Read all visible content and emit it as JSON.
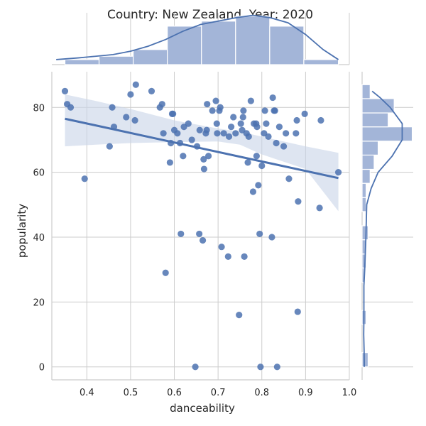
{
  "chart_data": {
    "type": "scatter",
    "title": "Country: New Zealand, Year: 2020",
    "xlabel": "danceability",
    "ylabel": "popularity",
    "xlim": [
      0.32,
      1.0
    ],
    "ylim": [
      -4,
      91
    ],
    "xticks": [
      "0.4",
      "0.5",
      "0.6",
      "0.7",
      "0.8",
      "0.9",
      "1.0"
    ],
    "yticks": [
      "0",
      "20",
      "40",
      "60",
      "80"
    ],
    "grid": true,
    "colors": {
      "points": "#4c72b0",
      "band": "#c8d3e8",
      "bars": "#a3b5d8",
      "bar_edge": "#ffffff"
    },
    "points": [
      [
        0.35,
        85
      ],
      [
        0.355,
        81
      ],
      [
        0.363,
        80
      ],
      [
        0.395,
        58
      ],
      [
        0.452,
        68
      ],
      [
        0.458,
        80
      ],
      [
        0.462,
        74
      ],
      [
        0.49,
        77
      ],
      [
        0.5,
        84
      ],
      [
        0.51,
        76
      ],
      [
        0.512,
        87
      ],
      [
        0.548,
        85
      ],
      [
        0.567,
        80
      ],
      [
        0.572,
        81
      ],
      [
        0.575,
        72
      ],
      [
        0.58,
        29
      ],
      [
        0.59,
        63
      ],
      [
        0.592,
        69
      ],
      [
        0.595,
        78
      ],
      [
        0.597,
        78
      ],
      [
        0.6,
        73
      ],
      [
        0.607,
        72
      ],
      [
        0.613,
        69
      ],
      [
        0.615,
        41
      ],
      [
        0.62,
        65
      ],
      [
        0.622,
        74
      ],
      [
        0.632,
        75
      ],
      [
        0.64,
        70
      ],
      [
        0.648,
        0
      ],
      [
        0.652,
        68
      ],
      [
        0.657,
        41
      ],
      [
        0.658,
        73
      ],
      [
        0.665,
        39
      ],
      [
        0.667,
        64
      ],
      [
        0.668,
        61
      ],
      [
        0.672,
        72
      ],
      [
        0.674,
        73
      ],
      [
        0.675,
        81
      ],
      [
        0.678,
        65
      ],
      [
        0.687,
        79
      ],
      [
        0.695,
        82
      ],
      [
        0.697,
        75
      ],
      [
        0.698,
        72
      ],
      [
        0.703,
        79
      ],
      [
        0.705,
        80
      ],
      [
        0.708,
        37
      ],
      [
        0.713,
        72
      ],
      [
        0.723,
        34
      ],
      [
        0.725,
        71
      ],
      [
        0.73,
        74
      ],
      [
        0.735,
        77
      ],
      [
        0.74,
        72
      ],
      [
        0.748,
        16
      ],
      [
        0.752,
        75
      ],
      [
        0.755,
        73
      ],
      [
        0.757,
        77
      ],
      [
        0.758,
        79
      ],
      [
        0.76,
        34
      ],
      [
        0.765,
        72
      ],
      [
        0.768,
        63
      ],
      [
        0.77,
        71
      ],
      [
        0.775,
        82
      ],
      [
        0.78,
        54
      ],
      [
        0.782,
        75
      ],
      [
        0.787,
        75
      ],
      [
        0.788,
        65
      ],
      [
        0.789,
        74
      ],
      [
        0.792,
        56
      ],
      [
        0.795,
        41
      ],
      [
        0.797,
        0
      ],
      [
        0.8,
        62
      ],
      [
        0.805,
        72
      ],
      [
        0.807,
        79
      ],
      [
        0.81,
        75
      ],
      [
        0.815,
        71
      ],
      [
        0.823,
        40
      ],
      [
        0.825,
        83
      ],
      [
        0.828,
        79
      ],
      [
        0.83,
        79
      ],
      [
        0.833,
        69
      ],
      [
        0.835,
        0
      ],
      [
        0.84,
        74
      ],
      [
        0.85,
        68
      ],
      [
        0.855,
        72
      ],
      [
        0.862,
        58
      ],
      [
        0.878,
        72
      ],
      [
        0.88,
        76
      ],
      [
        0.882,
        17
      ],
      [
        0.883,
        51
      ],
      [
        0.898,
        78
      ],
      [
        0.932,
        49
      ],
      [
        0.935,
        76
      ],
      [
        0.975,
        60
      ]
    ],
    "regression": {
      "x": [
        0.35,
        0.975
      ],
      "y": [
        76.5,
        58.2
      ]
    },
    "confidence_band": {
      "x": [
        0.35,
        0.42,
        0.5,
        0.6,
        0.7,
        0.75,
        0.8,
        0.9,
        0.975
      ],
      "lower": [
        68,
        68.5,
        69,
        69.3,
        69.5,
        68.5,
        65.5,
        61,
        48
      ],
      "upper": [
        84,
        82,
        79.5,
        76,
        73.5,
        72.5,
        71,
        68,
        66
      ]
    },
    "marginal_x": {
      "bins": [
        [
          0.35,
          0.428
        ],
        [
          0.428,
          0.506
        ],
        [
          0.506,
          0.584
        ],
        [
          0.584,
          0.662
        ],
        [
          0.662,
          0.74
        ],
        [
          0.74,
          0.818
        ],
        [
          0.818,
          0.896
        ],
        [
          0.896,
          0.975
        ]
      ],
      "counts": [
        3,
        5,
        9,
        23,
        26,
        29,
        23,
        3
      ],
      "kde_x": [
        0.33,
        0.38,
        0.42,
        0.46,
        0.5,
        0.54,
        0.58,
        0.62,
        0.66,
        0.7,
        0.74,
        0.78,
        0.82,
        0.86,
        0.9,
        0.94,
        0.975
      ],
      "kde_y": [
        3,
        4,
        5,
        6,
        8,
        11,
        15,
        20,
        24,
        26,
        28,
        29.5,
        28,
        25,
        18,
        9,
        3
      ]
    },
    "marginal_y": {
      "bins": [
        [
          0,
          4.4
        ],
        [
          4.4,
          8.7
        ],
        [
          8.7,
          13.1
        ],
        [
          13.1,
          17.4
        ],
        [
          17.4,
          21.8
        ],
        [
          21.8,
          26.1
        ],
        [
          26.1,
          30.5
        ],
        [
          30.5,
          34.8
        ],
        [
          34.8,
          39.2
        ],
        [
          39.2,
          43.5
        ],
        [
          43.5,
          47.9
        ],
        [
          47.9,
          52.2
        ],
        [
          52.2,
          56.6
        ],
        [
          56.6,
          60.9
        ],
        [
          60.9,
          65.3
        ],
        [
          65.3,
          69.6
        ],
        [
          69.6,
          74
        ],
        [
          74,
          78.3
        ],
        [
          78.3,
          82.7
        ],
        [
          82.7,
          87
        ]
      ],
      "counts": [
        3,
        0,
        0,
        2,
        0,
        0,
        1,
        2,
        2,
        3,
        0,
        2,
        2,
        4,
        6,
        8,
        25,
        13,
        16,
        4
      ],
      "kde_y": [
        0,
        5,
        10,
        15,
        20,
        25,
        30,
        35,
        40,
        45,
        50,
        55,
        60,
        65,
        70,
        75,
        80,
        83,
        85
      ],
      "kde_x": [
        1.1,
        1.0,
        0.8,
        0.9,
        0.9,
        0.9,
        1.3,
        1.6,
        1.9,
        2.1,
        2.3,
        4.5,
        8,
        15,
        20,
        20,
        14,
        9,
        5
      ]
    }
  }
}
